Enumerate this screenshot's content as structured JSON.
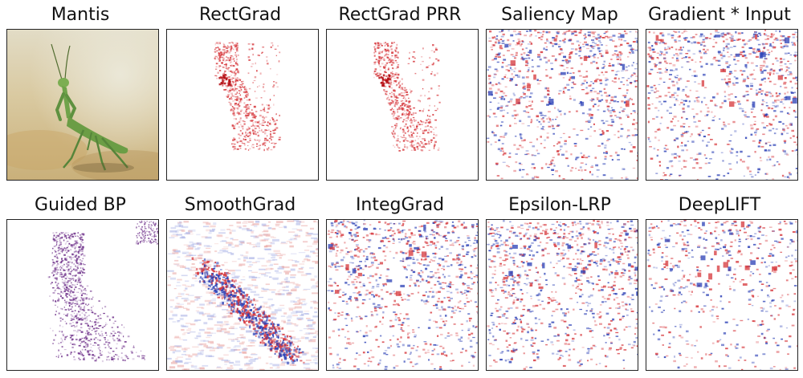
{
  "figure": {
    "panels": [
      {
        "title": "Mantis",
        "kind": "photo"
      },
      {
        "title": "RectGrad",
        "kind": "sparse-red"
      },
      {
        "title": "RectGrad PRR",
        "kind": "sparse-red"
      },
      {
        "title": "Saliency Map",
        "kind": "noise-dense"
      },
      {
        "title": "Gradient * Input",
        "kind": "noise-dense"
      },
      {
        "title": "Guided BP",
        "kind": "purple-outline"
      },
      {
        "title": "SmoothGrad",
        "kind": "smooth-diagonal"
      },
      {
        "title": "IntegGrad",
        "kind": "noise-dense"
      },
      {
        "title": "Epsilon-LRP",
        "kind": "noise-dense"
      },
      {
        "title": "DeepLIFT",
        "kind": "noise-medium"
      }
    ],
    "colors": {
      "positive": "#d6353a",
      "negative": "#2a3fb5",
      "purple": "#6a2a86",
      "mantis_green": "#6fa34a",
      "photo_bg": "#d8c9a2"
    }
  }
}
